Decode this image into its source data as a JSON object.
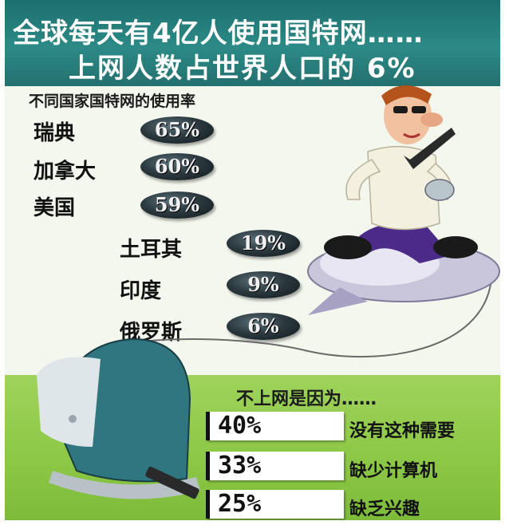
{
  "header": {
    "line1": "全球每天有4亿人使用国特网……",
    "line2": "上网人数占世界人口的 6%"
  },
  "subtitle": "不同国家国特网的使用率",
  "countries": [
    {
      "name": "瑞典",
      "pct": "65%",
      "value": 65
    },
    {
      "name": "加拿大",
      "pct": "60%",
      "value": 60
    },
    {
      "name": "美国",
      "pct": "59%",
      "value": 59
    },
    {
      "name": "土耳其",
      "pct": "19%",
      "value": 19
    },
    {
      "name": "印度",
      "pct": "9%",
      "value": 9
    },
    {
      "name": "俄罗斯",
      "pct": "6%",
      "value": 6
    }
  ],
  "reasons": {
    "title": "不上网是因为……",
    "items": [
      {
        "pct": "40%",
        "label": "没有这种需要",
        "value": 40
      },
      {
        "pct": "33%",
        "label": "缺少计算机",
        "value": 33
      },
      {
        "pct": "25%",
        "label": "缺乏兴趣",
        "value": 25
      }
    ]
  },
  "colors": {
    "header_bg": "#23706f",
    "lower_bg": "#8cc745",
    "pill": "#2c3a40"
  },
  "illustrations": [
    "man-riding-mouse",
    "imac-computer"
  ]
}
